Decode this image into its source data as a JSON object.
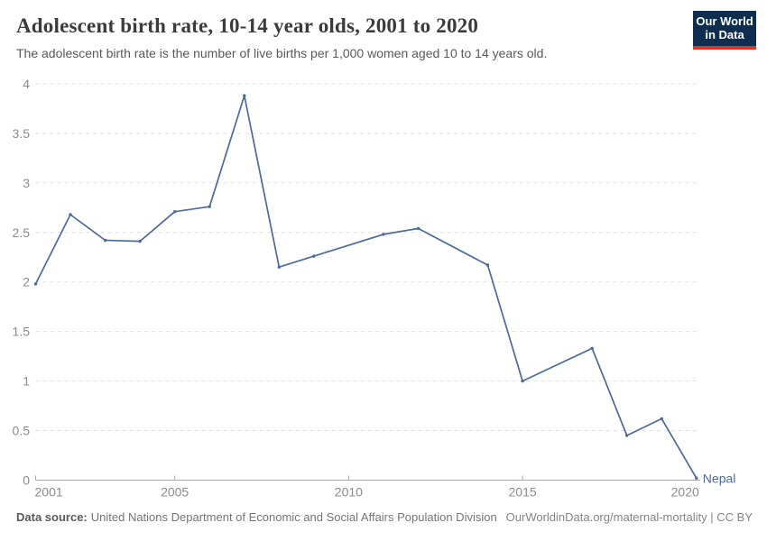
{
  "header": {
    "title": "Adolescent birth rate, 10-14 year olds, 2001 to 2020",
    "subtitle": "The adolescent birth rate is the number of live births per 1,000 women aged 10 to 14 years old.",
    "logo": {
      "line1": "Our World",
      "line2": "in Data"
    }
  },
  "chart_data": {
    "type": "line",
    "title": "Adolescent birth rate, 10-14 year olds, 2001 to 2020",
    "xlabel": "",
    "ylabel": "",
    "xlim": [
      2001,
      2020
    ],
    "ylim": [
      0,
      4
    ],
    "xticks": [
      2001,
      2005,
      2010,
      2015,
      2020
    ],
    "yticks": [
      0,
      0.5,
      1,
      1.5,
      2,
      2.5,
      3,
      3.5,
      4
    ],
    "grid": "horizontal-dashed",
    "legend": "end-of-line-label",
    "series": [
      {
        "name": "Nepal",
        "color": "#4c6a9c",
        "points": [
          [
            2001,
            1.98
          ],
          [
            2002,
            2.68
          ],
          [
            2003,
            2.42
          ],
          [
            2004,
            2.41
          ],
          [
            2005,
            2.71
          ],
          [
            2006,
            2.76
          ],
          [
            2007,
            3.88
          ],
          [
            2008,
            2.15
          ],
          [
            2009,
            2.26
          ],
          [
            2011,
            2.48
          ],
          [
            2012,
            2.54
          ],
          [
            2014,
            2.17
          ],
          [
            2015,
            1.0
          ],
          [
            2017,
            1.33
          ],
          [
            2018,
            0.45
          ],
          [
            2019,
            0.62
          ],
          [
            2020,
            0.02
          ]
        ]
      }
    ]
  },
  "footer": {
    "source_label": "Data source:",
    "source_text": "United Nations Department of Economic and Social Affairs Population Division",
    "credit": "OurWorldinData.org/maternal-mortality | CC BY"
  },
  "palette": {
    "line": "#4c6a9c",
    "entity_label": "#4c6a9c",
    "logo_bg": "#0f2e4f",
    "logo_bar": "#dc352c",
    "grid": "#e0e0e0",
    "axis": "#a8a8a8",
    "tick_label": "#8c8c8c"
  }
}
